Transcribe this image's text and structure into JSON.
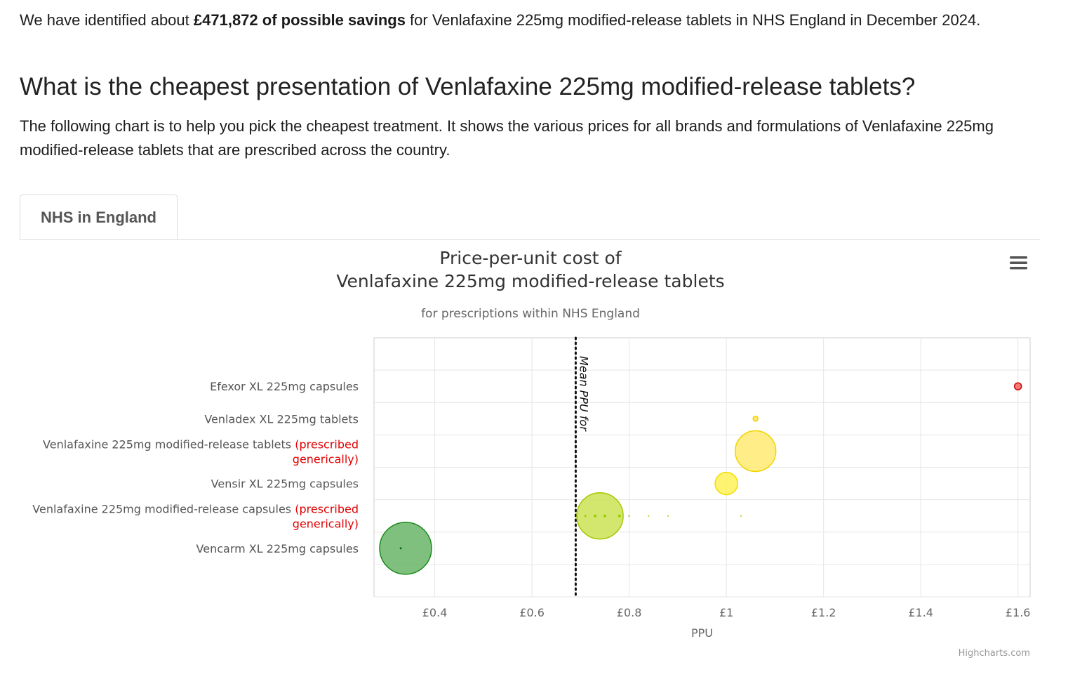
{
  "intro": {
    "before": "We have identified about ",
    "amount": "£471,872 of possible savings",
    "after": " for Venlafaxine 225mg modified-release tablets in NHS England in December 2024."
  },
  "question": "What is the cheapest presentation of Venlafaxine 225mg modified-release tablets?",
  "explanation": "The following chart is to help you pick the cheapest treatment. It shows the various prices for all brands and formulations of Venlafaxine 225mg modified-release tablets that are prescribed across the country.",
  "tabs": [
    {
      "label": "NHS in England",
      "active": true
    }
  ],
  "menu_icon": "hamburger-menu-icon",
  "credits": "Highcharts.com",
  "chart_data": {
    "type": "scatter",
    "title_lines": [
      "Price-per-unit cost of",
      "Venlafaxine 225mg modified-release tablets"
    ],
    "subtitle": "for prescriptions within NHS England",
    "xlabel": "PPU",
    "xlim": [
      0.275,
      1.625
    ],
    "x_ticks": [
      0.4,
      0.6,
      0.8,
      1.0,
      1.2,
      1.4,
      1.6
    ],
    "x_tick_labels": [
      "£0.4",
      "£0.6",
      "£0.8",
      "£1",
      "£1.2",
      "£1.4",
      "£1.6"
    ],
    "ylim": [
      -0.5,
      7.5
    ],
    "grid": true,
    "legend": "none",
    "categories": [
      {
        "name": "Efexor XL 225mg capsules",
        "suffix": ""
      },
      {
        "name": "Venladex XL 225mg tablets",
        "suffix": ""
      },
      {
        "name": "Venlafaxine 225mg modified-release tablets",
        "suffix": "(prescribed generically)"
      },
      {
        "name": "Vensir XL 225mg capsules",
        "suffix": ""
      },
      {
        "name": "Venlafaxine 225mg modified-release capsules",
        "suffix": "(prescribed generically)"
      },
      {
        "name": "Vencarm XL 225mg capsules",
        "suffix": ""
      }
    ],
    "suffix_color": "#e00000",
    "mean_line": {
      "value": 0.69,
      "label": "Mean PPU for"
    },
    "points": [
      {
        "category": 0,
        "x": 1.6,
        "r": 5,
        "fill": "#f45b5b",
        "stroke": "#cc0000"
      },
      {
        "category": 1,
        "x": 1.06,
        "r": 3.5,
        "fill": "#ffe34d",
        "stroke": "#f0d000"
      },
      {
        "category": 2,
        "x": 1.06,
        "r": 29,
        "fill": "#ffe86a",
        "stroke": "#f2d400"
      },
      {
        "category": 3,
        "x": 1.0,
        "r": 16,
        "fill": "#fff04f",
        "stroke": "#f0de00"
      },
      {
        "category": 4,
        "x": 0.74,
        "r": 33,
        "fill": "#c8e04a",
        "stroke": "#a6c800"
      },
      {
        "category": 4,
        "x": 0.71,
        "r": 1.5,
        "fill": "#9ccc00",
        "stroke": "#9ccc00"
      },
      {
        "category": 4,
        "x": 0.73,
        "r": 2,
        "fill": "#9ccc00",
        "stroke": "#9ccc00"
      },
      {
        "category": 4,
        "x": 0.75,
        "r": 2,
        "fill": "#9ccc00",
        "stroke": "#9ccc00"
      },
      {
        "category": 4,
        "x": 0.78,
        "r": 2,
        "fill": "#9ccc00",
        "stroke": "#9ccc00"
      },
      {
        "category": 4,
        "x": 0.8,
        "r": 1.2,
        "fill": "#9ccc00",
        "stroke": "#9ccc00"
      },
      {
        "category": 4,
        "x": 0.84,
        "r": 1,
        "fill": "#9ccc00",
        "stroke": "#9ccc00"
      },
      {
        "category": 4,
        "x": 0.88,
        "r": 1,
        "fill": "#9ccc00",
        "stroke": "#9ccc00"
      },
      {
        "category": 4,
        "x": 1.03,
        "r": 1,
        "fill": "#9ccc00",
        "stroke": "#9ccc00"
      },
      {
        "category": 5,
        "x": 0.34,
        "r": 37,
        "fill": "#5fb05f",
        "stroke": "#1b8a1b"
      },
      {
        "category": 5,
        "x": 0.33,
        "r": 1.5,
        "fill": "#0b6b0b",
        "stroke": "#0b6b0b"
      }
    ]
  }
}
